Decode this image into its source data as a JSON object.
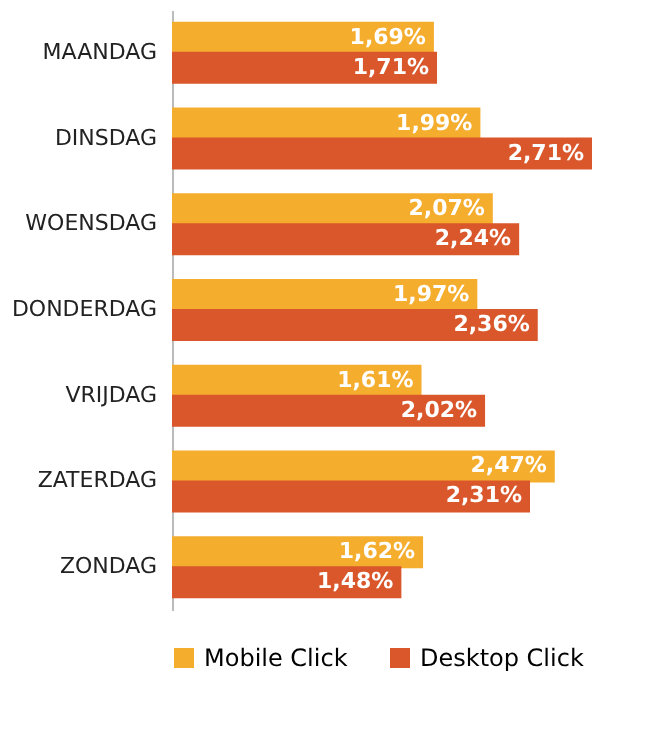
{
  "chart_data": {
    "type": "bar",
    "orientation": "horizontal",
    "categories": [
      "MAANDAG",
      "DINSDAG",
      "WOENSDAG",
      "DONDERDAG",
      "VRIJDAG",
      "ZATERDAG",
      "ZONDAG"
    ],
    "series": [
      {
        "name": "Mobile Click",
        "color": "#f5ad2e",
        "values": [
          1.69,
          1.99,
          2.07,
          1.97,
          1.61,
          2.47,
          1.62
        ],
        "value_labels": [
          "1,69%",
          "1,99%",
          "2,07%",
          "1,97%",
          "1,61%",
          "2,47%",
          "1,62%"
        ]
      },
      {
        "name": "Desktop Click",
        "color": "#d9572b",
        "values": [
          1.71,
          2.71,
          2.24,
          2.36,
          2.02,
          2.31,
          1.48
        ],
        "value_labels": [
          "1,71%",
          "2,71%",
          "2,24%",
          "2,36%",
          "2,02%",
          "2,31%",
          "1,48%"
        ]
      }
    ],
    "tick_labels": "y",
    "legend": "bottom",
    "grid": false
  }
}
